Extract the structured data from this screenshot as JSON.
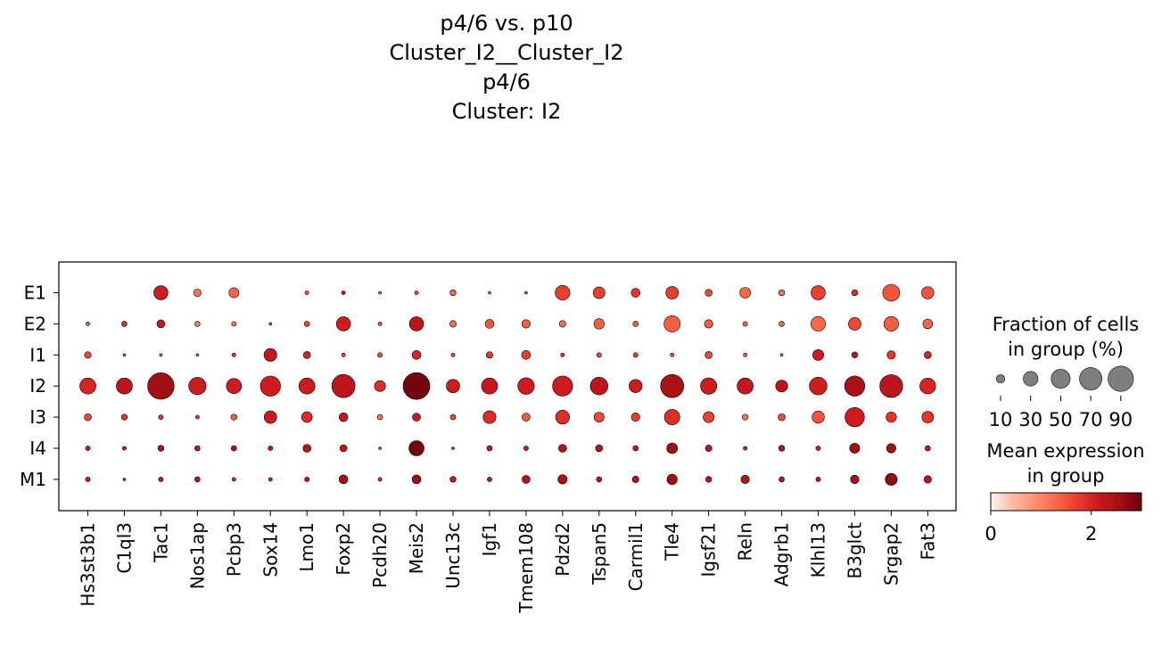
{
  "title_lines": [
    "p4/6 vs. p10",
    "Cluster_I2__Cluster_I2",
    "",
    "p4/6",
    "Cluster: I2"
  ],
  "chart_data": {
    "type": "dotplot",
    "genes": [
      "Hs3st3b1",
      "C1ql3",
      "Tac1",
      "Nos1ap",
      "Pcbp3",
      "Sox14",
      "Lmo1",
      "Foxp2",
      "Pcdh20",
      "Meis2",
      "Unc13c",
      "Igf1",
      "Tmem108",
      "Pdzd2",
      "Tspan5",
      "Carmil1",
      "Tle4",
      "Igsf21",
      "Reln",
      "Adgrb1",
      "Klhl13",
      "B3glct",
      "Srgap2",
      "Fat3"
    ],
    "groups": [
      "E1",
      "E2",
      "I1",
      "I2",
      "I3",
      "I4",
      "M1"
    ],
    "fraction_pct": [
      [
        0,
        0,
        28,
        8,
        14,
        0,
        2,
        2,
        1,
        2,
        5,
        1,
        1,
        30,
        19,
        11,
        22,
        7,
        16,
        5,
        28,
        5,
        40,
        21
      ],
      [
        2,
        4,
        9,
        4,
        3,
        1,
        4,
        28,
        2,
        28,
        6,
        11,
        10,
        6,
        15,
        4,
        37,
        10,
        3,
        4,
        30,
        22,
        30,
        13
      ],
      [
        6,
        1,
        1,
        1,
        2,
        23,
        7,
        2,
        3,
        11,
        2,
        6,
        11,
        2,
        3,
        3,
        2,
        7,
        2,
        1,
        17,
        5,
        10,
        7
      ],
      [
        36,
        36,
        98,
        42,
        32,
        57,
        36,
        75,
        17,
        100,
        25,
        36,
        38,
        56,
        43,
        24,
        75,
        37,
        36,
        20,
        43,
        57,
        73,
        35
      ],
      [
        7,
        5,
        3,
        2,
        5,
        22,
        16,
        11,
        4,
        9,
        4,
        23,
        9,
        27,
        14,
        10,
        33,
        17,
        5,
        7,
        21,
        52,
        15,
        19
      ],
      [
        3,
        2,
        5,
        4,
        4,
        3,
        9,
        7,
        1,
        32,
        1,
        4,
        3,
        9,
        7,
        4,
        16,
        6,
        2,
        5,
        3,
        14,
        12,
        4
      ],
      [
        3,
        1,
        3,
        4,
        2,
        2,
        3,
        11,
        2,
        11,
        5,
        3,
        9,
        12,
        4,
        6,
        15,
        5,
        10,
        4,
        3,
        10,
        20,
        8
      ]
    ],
    "mean_expression": [
      [
        0,
        0,
        2.1,
        1.2,
        1.3,
        0,
        1.5,
        2.1,
        1.5,
        1.6,
        1.3,
        1.4,
        1.6,
        1.7,
        1.7,
        1.8,
        1.7,
        1.6,
        1.3,
        1.2,
        1.7,
        1.9,
        1.5,
        1.5
      ],
      [
        1.5,
        1.9,
        2.2,
        1.1,
        1.1,
        1.6,
        1.6,
        2.1,
        1.5,
        2.3,
        1.2,
        1.5,
        1.4,
        1.2,
        1.4,
        1.4,
        1.4,
        1.4,
        1.3,
        1.3,
        1.3,
        1.6,
        1.4,
        1.3
      ],
      [
        1.6,
        1.4,
        1.3,
        1.2,
        1.8,
        2.2,
        2.0,
        1.7,
        1.6,
        2.0,
        1.6,
        1.8,
        1.7,
        1.8,
        1.6,
        1.7,
        1.6,
        1.6,
        1.5,
        1.3,
        2.1,
        2.3,
        1.8,
        2.0
      ],
      [
        2.0,
        2.3,
        2.6,
        2.1,
        2.1,
        2.1,
        2.1,
        2.3,
        1.9,
        2.9,
        2.1,
        2.2,
        2.1,
        2.1,
        2.3,
        2.1,
        2.5,
        2.1,
        2.2,
        2.3,
        2.1,
        2.5,
        2.3,
        2.0
      ],
      [
        1.6,
        1.8,
        1.8,
        1.7,
        1.4,
        2.1,
        1.9,
        2.2,
        1.2,
        2.1,
        1.6,
        1.9,
        1.4,
        1.9,
        1.6,
        1.7,
        1.9,
        1.7,
        1.2,
        1.6,
        1.5,
        2.1,
        1.8,
        1.8
      ],
      [
        2.1,
        2.2,
        2.5,
        2.3,
        2.3,
        2.2,
        2.4,
        2.3,
        1.7,
        2.9,
        2.0,
        2.2,
        2.2,
        2.4,
        2.4,
        2.2,
        2.6,
        2.3,
        2.1,
        2.4,
        2.1,
        2.6,
        2.5,
        2.2
      ],
      [
        2.1,
        1.9,
        2.2,
        2.4,
        2.0,
        2.1,
        2.3,
        2.5,
        2.0,
        2.6,
        2.2,
        2.2,
        2.4,
        2.5,
        2.3,
        2.4,
        2.6,
        2.3,
        2.4,
        2.4,
        2.2,
        2.5,
        2.7,
        2.3
      ]
    ],
    "size_legend": {
      "title_lines": [
        "Fraction of cells",
        "in group (%)"
      ],
      "values": [
        10,
        30,
        50,
        70,
        90
      ],
      "labels": [
        "10",
        "30",
        "50",
        "70",
        "90"
      ]
    },
    "color_legend": {
      "title_lines": [
        "Mean expression",
        "in group"
      ],
      "range": [
        0,
        3
      ],
      "ticks": [
        0,
        2
      ],
      "tick_labels": [
        "0",
        "2"
      ],
      "colormap": "Reds",
      "colors": [
        "#fff5f0",
        "#fcbba1",
        "#fc9272",
        "#fb6a4a",
        "#ef3b2c",
        "#cb181d",
        "#a50f15",
        "#67000d"
      ]
    }
  }
}
